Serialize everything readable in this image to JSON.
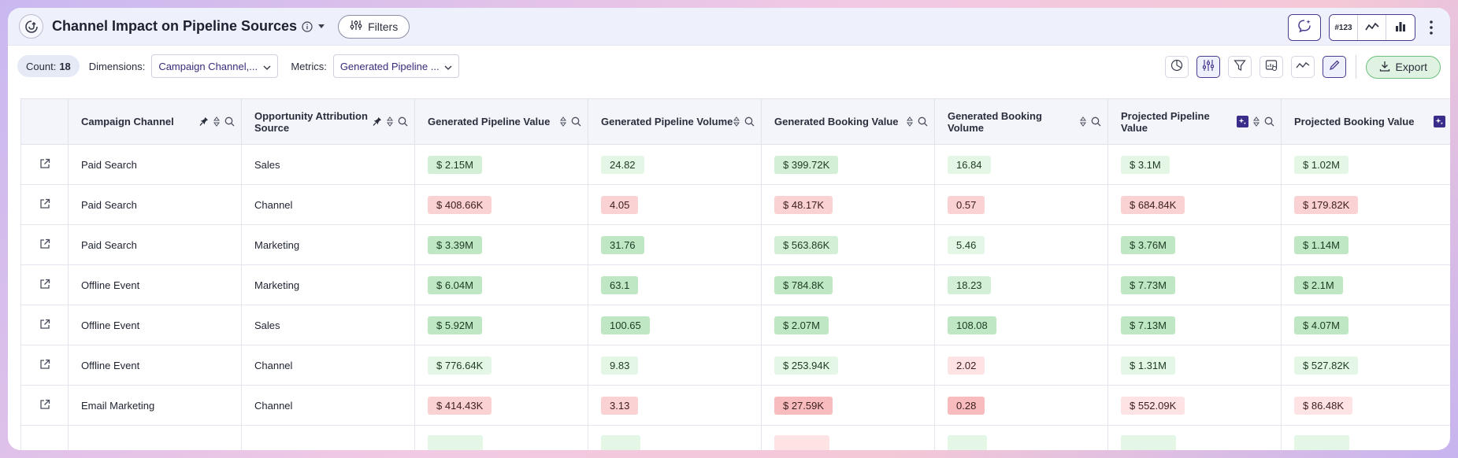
{
  "header": {
    "title": "Channel Impact on Pipeline Sources",
    "filters_label": "Filters",
    "viz_number_label": "#123"
  },
  "toolbar": {
    "count_label": "Count:",
    "count_value": "18",
    "dimensions_label": "Dimensions:",
    "dimensions_value": "Campaign Channel,...",
    "metrics_label": "Metrics:",
    "metrics_value": "Generated Pipeline ...",
    "export_label": "Export"
  },
  "colors": {
    "accent": "#4b3b8f",
    "green_strong": "#bfe7c4",
    "green_light": "#e4f6e6",
    "red_light": "#fde3e3",
    "red_strong": "#f8bcbf"
  },
  "table": {
    "columns": [
      "Campaign Channel",
      "Opportunity Attribution Source",
      "Generated Pipeline Value",
      "Generated Pipeline Volume",
      "Generated Booking Value",
      "Generated Booking Volume",
      "Projected Pipeline Value",
      "Projected Booking Value"
    ],
    "rows": [
      {
        "channel": "Paid Search",
        "source": "Sales",
        "gpv": "$ 2.15M",
        "gpvol": "24.82",
        "gbv": "$ 399.72K",
        "gbvol": "16.84",
        "ppv": "$ 3.1M",
        "pbv": "$ 1.02M"
      },
      {
        "channel": "Paid Search",
        "source": "Channel",
        "gpv": "$ 408.66K",
        "gpvol": "4.05",
        "gbv": "$ 48.17K",
        "gbvol": "0.57",
        "ppv": "$ 684.84K",
        "pbv": "$ 179.82K"
      },
      {
        "channel": "Paid Search",
        "source": "Marketing",
        "gpv": "$ 3.39M",
        "gpvol": "31.76",
        "gbv": "$ 563.86K",
        "gbvol": "5.46",
        "ppv": "$ 3.76M",
        "pbv": "$ 1.14M"
      },
      {
        "channel": "Offline Event",
        "source": "Marketing",
        "gpv": "$ 6.04M",
        "gpvol": "63.1",
        "gbv": "$ 784.8K",
        "gbvol": "18.23",
        "ppv": "$ 7.73M",
        "pbv": "$ 2.1M"
      },
      {
        "channel": "Offline Event",
        "source": "Sales",
        "gpv": "$ 5.92M",
        "gpvol": "100.65",
        "gbv": "$ 2.07M",
        "gbvol": "108.08",
        "ppv": "$ 7.13M",
        "pbv": "$ 4.07M"
      },
      {
        "channel": "Offline Event",
        "source": "Channel",
        "gpv": "$ 776.64K",
        "gpvol": "9.83",
        "gbv": "$ 253.94K",
        "gbvol": "2.02",
        "ppv": "$ 1.31M",
        "pbv": "$ 527.82K"
      },
      {
        "channel": "Email Marketing",
        "source": "Channel",
        "gpv": "$ 414.43K",
        "gpvol": "3.13",
        "gbv": "$ 27.59K",
        "gbvol": "0.28",
        "ppv": "$ 552.09K",
        "pbv": "$ 86.48K"
      }
    ]
  }
}
